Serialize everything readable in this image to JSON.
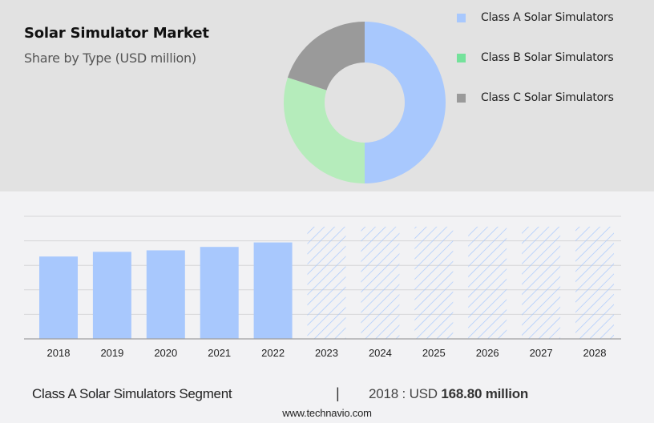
{
  "header": {
    "title": "Solar Simulator Market",
    "subtitle": "Share by Type (USD million)"
  },
  "legend": {
    "items": [
      {
        "label": "Class A Solar Simulators",
        "color": "#a8c8fd"
      },
      {
        "label": "Class B Solar Simulators",
        "color": "#74e29b"
      },
      {
        "label": "Class C Solar Simulators",
        "color": "#9a9a9a"
      }
    ]
  },
  "footer": {
    "segment": "Class A Solar Simulators Segment",
    "separator": "|",
    "year_label": "2018 : USD ",
    "value": "168.80 million",
    "source": "www.technavio.com"
  },
  "colors": {
    "top_bg": "#e2e2e2",
    "bottom_bg": "#f2f2f4",
    "bar": "#a8c8fd",
    "forecast_hatch": "#a8c8fd",
    "gridline": "#d4d4d4",
    "axis": "#a0a0a0"
  },
  "chart_data": [
    {
      "type": "pie",
      "subtype": "donut",
      "title": "Solar Simulator Market",
      "subtitle": "Share by Type (USD million)",
      "labels": [
        "Class A Solar Simulators",
        "Class B Solar Simulators",
        "Class C Solar Simulators"
      ],
      "values": [
        50,
        30,
        20
      ],
      "colors": [
        "#a8c8fd",
        "#b5ecbb",
        "#9a9a9a"
      ],
      "legend_position": "right"
    },
    {
      "type": "bar",
      "title": "Class A Solar Simulators Segment",
      "categories": [
        "2018",
        "2019",
        "2020",
        "2021",
        "2022",
        "2023",
        "2024",
        "2025",
        "2026",
        "2027",
        "2028"
      ],
      "series": [
        {
          "name": "Historical",
          "values": [
            168.8,
            178.4,
            181.5,
            188.5,
            197.7,
            null,
            null,
            null,
            null,
            null,
            null
          ]
        },
        {
          "name": "Forecast (hatched, value not shown)",
          "values": [
            null,
            null,
            null,
            null,
            null,
            230,
            230,
            230,
            230,
            230,
            230
          ]
        }
      ],
      "annotation": "2018 : USD 168.80 million",
      "xlabel": "",
      "ylabel": "",
      "ylim": [
        0,
        250
      ],
      "grid": true,
      "y_tick_labels_visible": false
    }
  ]
}
